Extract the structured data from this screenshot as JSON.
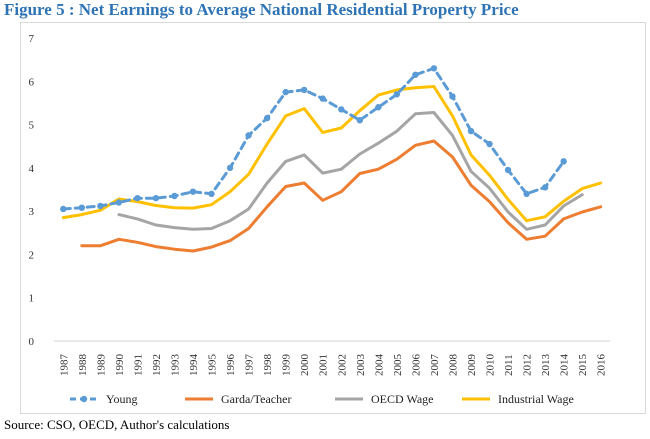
{
  "figure_title": "Figure 5 : Net Earnings to Average National Residential Property Price",
  "source": "Source: CSO, OECD, Author's calculations",
  "chart_data": {
    "type": "line",
    "title": "Figure 5 : Net Earnings to Average National Residential Property Price",
    "xlabel": "",
    "ylabel": "",
    "ylim": [
      0,
      7
    ],
    "yticks": [
      0,
      1,
      2,
      3,
      4,
      5,
      6,
      7
    ],
    "grid": false,
    "legend": "bottom",
    "categories": [
      "1987",
      "1988",
      "1989",
      "1990",
      "1991",
      "1992",
      "1993",
      "1994",
      "1995",
      "1996",
      "1997",
      "1998",
      "1999",
      "2000",
      "2001",
      "2002",
      "2003",
      "2004",
      "2005",
      "2006",
      "2007",
      "2008",
      "2009",
      "2010",
      "2011",
      "2012",
      "2013",
      "2014",
      "2015",
      "2016"
    ],
    "series": [
      {
        "name": "Young",
        "color": "#5b9bd5",
        "style": "dashed-markers",
        "values": [
          3.05,
          3.08,
          3.12,
          3.2,
          3.3,
          3.3,
          3.35,
          3.45,
          3.4,
          4.0,
          4.75,
          5.15,
          5.75,
          5.8,
          5.6,
          5.35,
          5.1,
          5.4,
          5.7,
          6.15,
          6.3,
          5.65,
          4.85,
          4.55,
          3.95,
          3.4,
          3.55,
          4.15,
          null,
          null
        ]
      },
      {
        "name": "Garda/Teacher",
        "color": "#ed7d31",
        "style": "solid",
        "values": [
          null,
          2.2,
          2.2,
          2.35,
          2.28,
          2.18,
          2.12,
          2.08,
          2.17,
          2.32,
          2.6,
          3.1,
          3.57,
          3.65,
          3.25,
          3.45,
          3.87,
          3.97,
          4.2,
          4.52,
          4.62,
          4.25,
          3.6,
          3.22,
          2.73,
          2.35,
          2.42,
          2.82,
          2.98,
          3.1
        ]
      },
      {
        "name": "OECD Wage",
        "color": "#a5a5a5",
        "style": "solid",
        "values": [
          null,
          null,
          null,
          2.92,
          2.82,
          2.68,
          2.62,
          2.58,
          2.6,
          2.78,
          3.05,
          3.65,
          4.15,
          4.3,
          3.88,
          3.97,
          4.32,
          4.57,
          4.85,
          5.25,
          5.28,
          4.75,
          3.92,
          3.53,
          2.98,
          2.58,
          2.68,
          3.12,
          3.38,
          null
        ]
      },
      {
        "name": "Industrial Wage",
        "color": "#ffc000",
        "style": "solid",
        "values": [
          2.85,
          2.92,
          3.02,
          3.28,
          3.22,
          3.13,
          3.08,
          3.07,
          3.15,
          3.45,
          3.85,
          4.55,
          5.2,
          5.37,
          4.82,
          4.92,
          5.32,
          5.68,
          5.8,
          5.85,
          5.88,
          5.2,
          4.3,
          3.83,
          3.27,
          2.78,
          2.87,
          3.23,
          3.52,
          3.65
        ]
      }
    ]
  }
}
